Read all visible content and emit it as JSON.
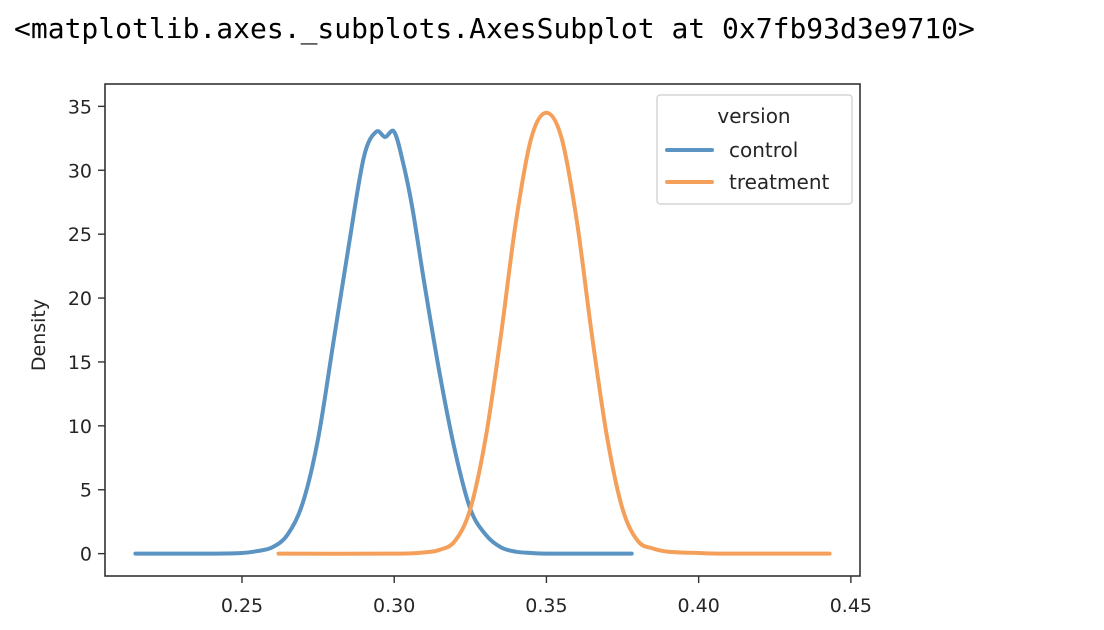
{
  "output_repr": "<matplotlib.axes._subplots.AxesSubplot at 0x7fb93d3e9710>",
  "chart_data": {
    "type": "line",
    "title": "",
    "xlabel": "",
    "ylabel": "Density",
    "xlim": [
      0.205,
      0.453
    ],
    "ylim": [
      -1.75,
      36.75
    ],
    "grid": false,
    "x_ticks": [
      0.25,
      0.3,
      0.35,
      0.4,
      0.45
    ],
    "x_tick_labels": [
      "0.25",
      "0.30",
      "0.35",
      "0.40",
      "0.45"
    ],
    "y_ticks": [
      0,
      5,
      10,
      15,
      20,
      25,
      30,
      35
    ],
    "y_tick_labels": [
      "0",
      "5",
      "10",
      "15",
      "20",
      "25",
      "30",
      "35"
    ],
    "legend": {
      "title": "version",
      "placement": "upper right"
    },
    "series": [
      {
        "name": "control",
        "color": "#5b93c2",
        "x": [
          0.215,
          0.24,
          0.25,
          0.255,
          0.26,
          0.265,
          0.27,
          0.275,
          0.28,
          0.285,
          0.29,
          0.294,
          0.297,
          0.3,
          0.303,
          0.306,
          0.31,
          0.315,
          0.32,
          0.325,
          0.33,
          0.335,
          0.34,
          0.345,
          0.35,
          0.36,
          0.378
        ],
        "y": [
          0,
          0,
          0.05,
          0.2,
          0.5,
          1.5,
          4,
          9,
          16.5,
          24,
          31,
          33,
          32.6,
          33,
          30.5,
          27,
          21,
          14,
          8,
          3.5,
          1.5,
          0.5,
          0.15,
          0.05,
          0,
          0,
          0
        ]
      },
      {
        "name": "treatment",
        "color": "#f5a05a",
        "x": [
          0.262,
          0.3,
          0.31,
          0.315,
          0.32,
          0.325,
          0.33,
          0.335,
          0.34,
          0.345,
          0.35,
          0.355,
          0.36,
          0.365,
          0.37,
          0.375,
          0.38,
          0.385,
          0.39,
          0.4,
          0.41,
          0.443
        ],
        "y": [
          0,
          0,
          0.1,
          0.3,
          1,
          3.5,
          9,
          17,
          26,
          32.5,
          34.5,
          32.5,
          26,
          17,
          9,
          3.5,
          1,
          0.4,
          0.15,
          0.05,
          0,
          0
        ]
      }
    ]
  }
}
